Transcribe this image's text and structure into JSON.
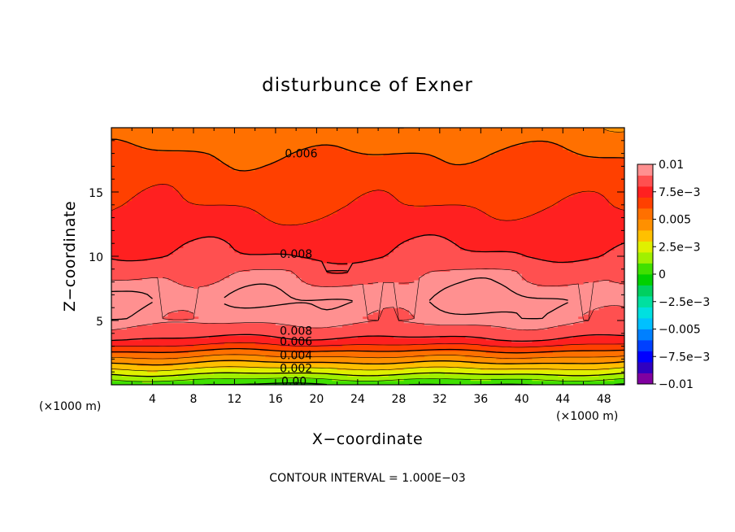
{
  "chart_data": {
    "type": "heatmap",
    "title": "disturbunce of Exner",
    "xlabel": "X−coordinate",
    "ylabel": "Z−coordinate",
    "x_unit_left": "(×1000 m)",
    "x_unit_right": "(×1000 m)",
    "xlim": [
      0,
      50
    ],
    "ylim": [
      0,
      20
    ],
    "x_ticks": [
      4,
      8,
      12,
      16,
      20,
      24,
      28,
      32,
      36,
      40,
      44,
      48
    ],
    "y_ticks": [
      5,
      10,
      15
    ],
    "contour_interval_text": "CONTOUR INTERVAL = 1.000E−03",
    "colorbar": {
      "range": [
        -0.01,
        0.01
      ],
      "labels": [
        {
          "value": 0.01,
          "text": "0.01"
        },
        {
          "value": 0.0075,
          "text": "7.5e−3"
        },
        {
          "value": 0.005,
          "text": "0.005"
        },
        {
          "value": 0.0025,
          "text": "2.5e−3"
        },
        {
          "value": 0,
          "text": "0"
        },
        {
          "value": -0.0025,
          "text": "−2.5e−3"
        },
        {
          "value": -0.005,
          "text": "−0.005"
        },
        {
          "value": -0.0075,
          "text": "−7.5e−3"
        },
        {
          "value": -0.01,
          "text": "−0.01"
        }
      ],
      "colors": [
        "#8000a0",
        "#3000c0",
        "#0000ff",
        "#0040ff",
        "#0080ff",
        "#00c0ff",
        "#00e0e0",
        "#00e0a0",
        "#00d060",
        "#00d000",
        "#40e000",
        "#a0f000",
        "#e0f000",
        "#ffc000",
        "#ff9000",
        "#ff7000",
        "#ff4000",
        "#ff2020",
        "#ff5050",
        "#ff9090"
      ]
    },
    "profile_z": [
      0,
      0.5,
      1,
      1.5,
      2,
      2.5,
      3,
      3.5,
      4,
      4.5,
      5,
      5.5,
      6,
      6.5,
      7,
      7.5,
      8,
      9,
      10,
      11,
      12,
      13,
      14,
      15,
      16,
      17,
      18,
      19,
      20
    ],
    "profile_value": [
      0.0,
      0.0012,
      0.0024,
      0.0035,
      0.0046,
      0.0057,
      0.0068,
      0.0078,
      0.0084,
      0.0088,
      0.0093,
      0.0095,
      0.0098,
      0.0101,
      0.0099,
      0.0096,
      0.0092,
      0.0087,
      0.008,
      0.0078,
      0.0075,
      0.0072,
      0.0069,
      0.0067,
      0.0065,
      0.0063,
      0.006,
      0.0056,
      0.0053
    ],
    "contour_labels": [
      {
        "text": "0.006",
        "x": 18.5,
        "z": 18.0
      },
      {
        "text": "0.008",
        "x": 18.0,
        "z": 10.2
      },
      {
        "text": "0.008",
        "x": 18.0,
        "z": 4.2
      },
      {
        "text": "0.006",
        "x": 18.0,
        "z": 3.4
      },
      {
        "text": "0.004",
        "x": 18.0,
        "z": 2.3
      },
      {
        "text": "0.002",
        "x": 18.0,
        "z": 1.3
      },
      {
        "text": "0.00",
        "x": 17.8,
        "z": 0.3
      }
    ]
  }
}
